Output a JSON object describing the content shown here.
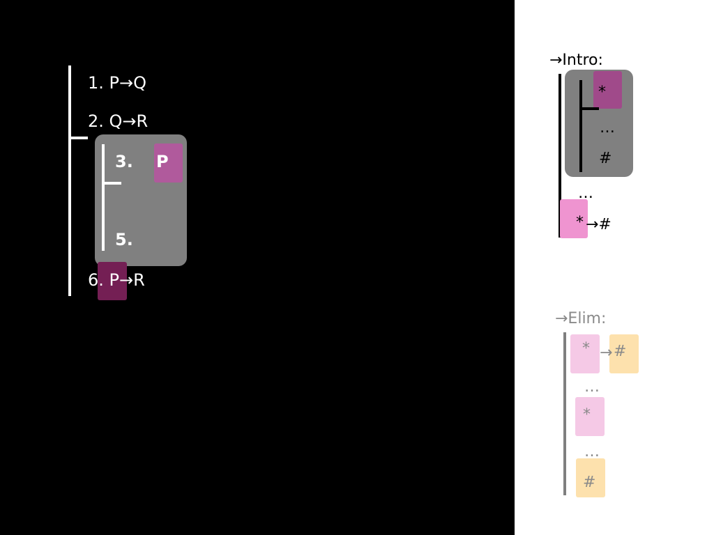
{
  "proof": {
    "line1": "1. P→Q",
    "line2": "2. Q→R",
    "line3_num": "3.",
    "line3_formula": "P",
    "line5_num": "5.",
    "line6": "6. P→R"
  },
  "intro": {
    "title": "→Intro:",
    "star": "*",
    "dots_inner": "…",
    "hash": "#",
    "dots_outer": "…",
    "result_star": "*",
    "result_rest": "→#"
  },
  "elim": {
    "title": "→Elim:",
    "line1_star": "*",
    "line1_arrow": "→",
    "line1_hash": "#",
    "dots1": "…",
    "star": "*",
    "dots2": "…",
    "hash": "#"
  },
  "colors": {
    "background_left": "#000000",
    "background_right": "#ffffff",
    "subproof_gray": "#808080",
    "highlight_pink": "#b05a9c",
    "highlight_dark_magenta": "#741f54",
    "highlight_light_pink": "#ef94d0",
    "highlight_pale_pink": "#f5c9e6",
    "highlight_peach": "#fde1ad"
  }
}
